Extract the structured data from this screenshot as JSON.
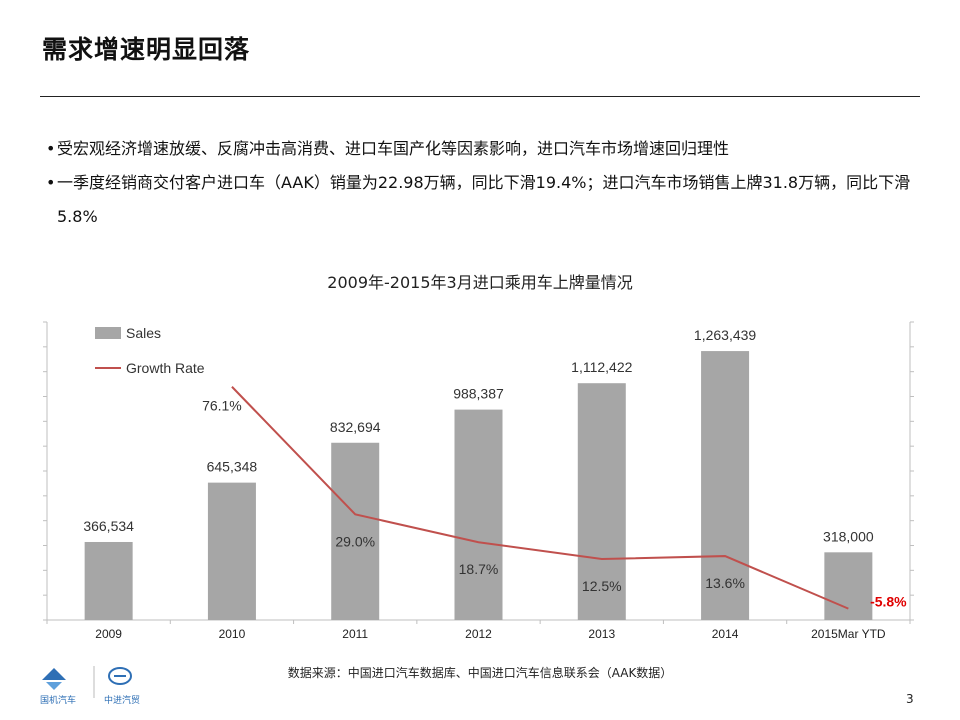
{
  "slide": {
    "title": "需求增速明显回落",
    "bullets": [
      "受宏观经济增速放缓、反腐冲击高消费、进口车国产化等因素影响，进口汽车市场增速回归理性",
      "一季度经销商交付客户进口车（AAK）销量为22.98万辆，同比下滑19.4%；进口汽车市场销售上牌31.8万辆，同比下滑5.8%"
    ],
    "source": "数据来源：中国进口汽车数据库、中国进口汽车信息联系会（AAK数据）",
    "page_number": "3",
    "logos": {
      "left_text": "国机汽车",
      "right_text": "中进汽贸"
    }
  },
  "chart_data": {
    "type": "bar",
    "title": "2009年-2015年3月进口乘用车上牌量情况",
    "categories": [
      "2009",
      "2010",
      "2011",
      "2012",
      "2013",
      "2014",
      "2015Mar YTD"
    ],
    "series": [
      {
        "name": "Sales",
        "type": "bar",
        "values": [
          366534,
          645348,
          832694,
          988387,
          1112422,
          1263439,
          318000
        ],
        "labels": [
          "366,534",
          "645,348",
          "832,694",
          "988,387",
          "1,112,422",
          "1,263,439",
          "318,000"
        ],
        "color": "#a6a6a6"
      },
      {
        "name": "Growth Rate",
        "type": "line",
        "values": [
          null,
          76.1,
          29.0,
          18.7,
          12.5,
          13.6,
          -5.8
        ],
        "labels": [
          "",
          "76.1%",
          "29.0%",
          "18.7%",
          "12.5%",
          "13.6%",
          "-5.8%"
        ],
        "color": "#c0504d",
        "highlight_color": "#e00000"
      }
    ],
    "ylim_sales": [
      0,
      1400000
    ],
    "ylim_growth": [
      -10,
      100
    ],
    "legend": "top-left",
    "grid": false
  }
}
